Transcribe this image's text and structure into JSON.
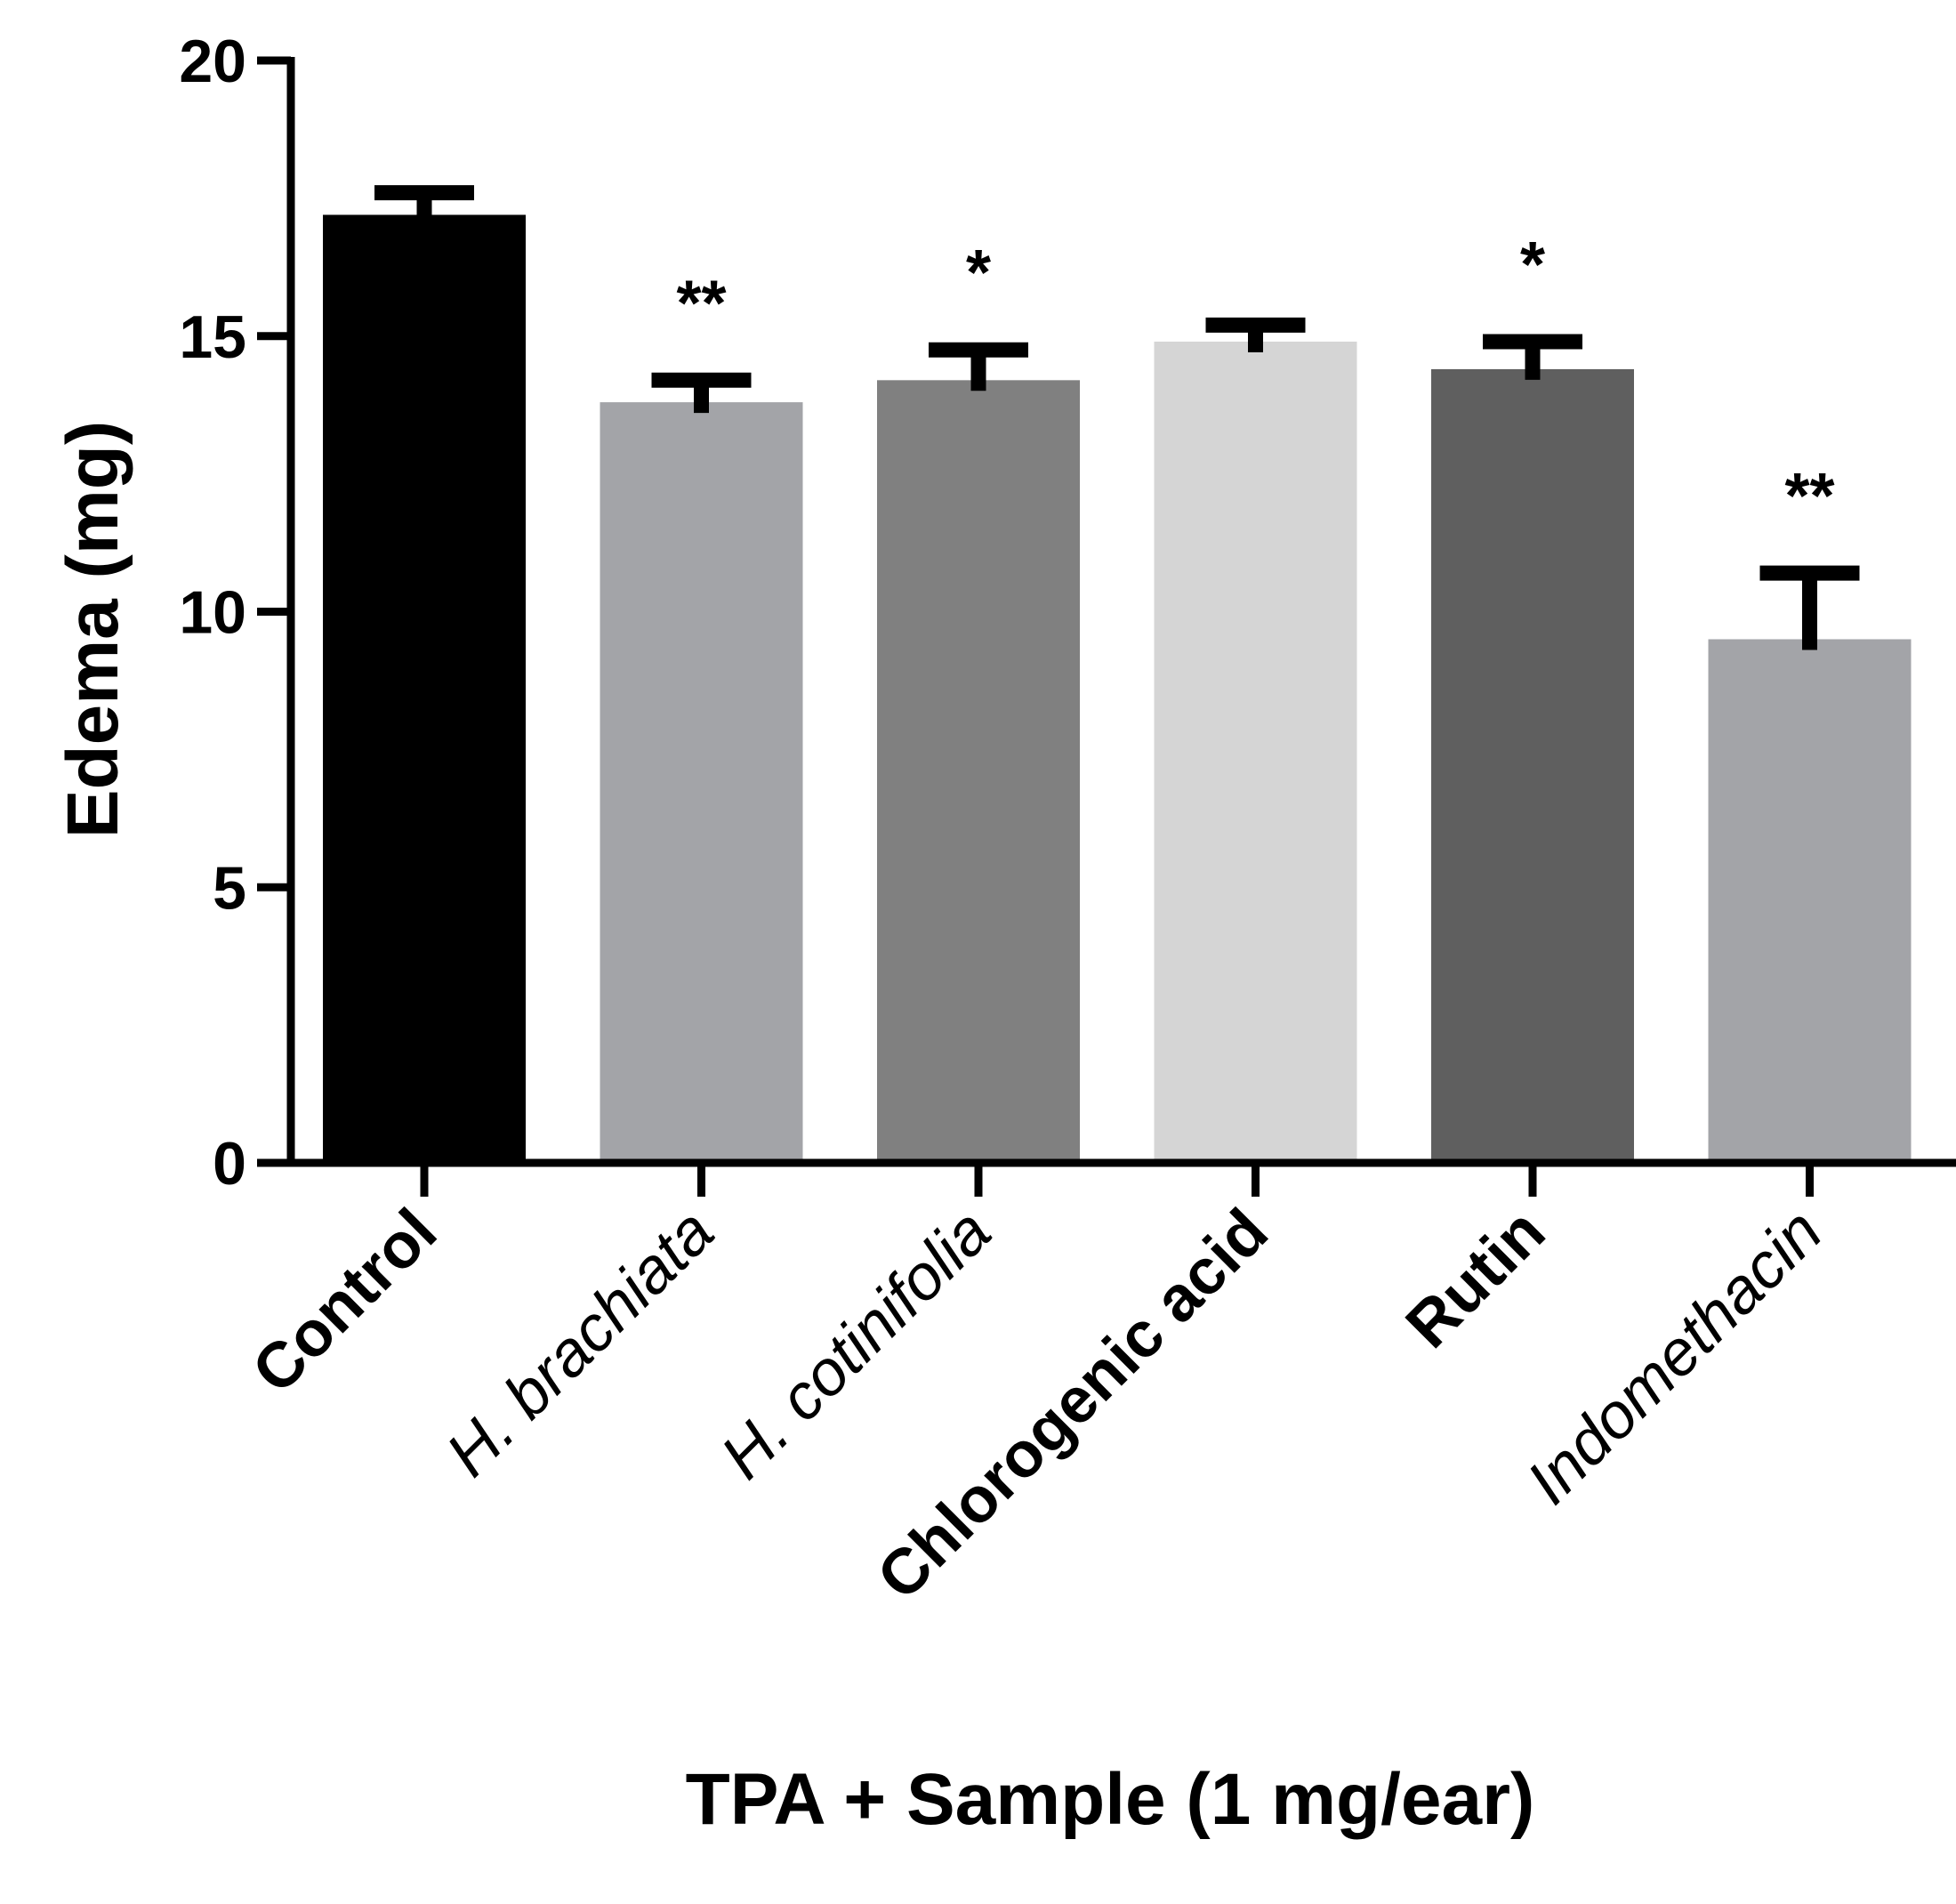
{
  "chart_data": {
    "type": "bar",
    "title": "",
    "xlabel": "TPA + Sample (1 mg/ear)",
    "ylabel": "Edema (mg)",
    "ylim": [
      0,
      20
    ],
    "yticks": [
      0,
      5,
      10,
      15,
      20
    ],
    "yticks_labels": [
      "0",
      "5",
      "10",
      "15",
      "20"
    ],
    "categories": [
      "Control",
      "H. brachiata",
      "H. cotinifolia",
      "Chlorogenic acid",
      "Rutin",
      "Indomethacin"
    ],
    "italic_categories": [
      false,
      true,
      true,
      false,
      false,
      true
    ],
    "values": [
      17.2,
      13.8,
      14.2,
      14.9,
      14.4,
      9.5
    ],
    "errors": [
      0.4,
      0.4,
      0.55,
      0.3,
      0.5,
      1.2
    ],
    "significance": [
      "",
      "**",
      "*",
      "",
      "*",
      "**"
    ],
    "colors": [
      "#000000",
      "#a3a4a8",
      "#808080",
      "#d5d5d5",
      "#5f5f5f",
      "#a3a4a8"
    ]
  }
}
